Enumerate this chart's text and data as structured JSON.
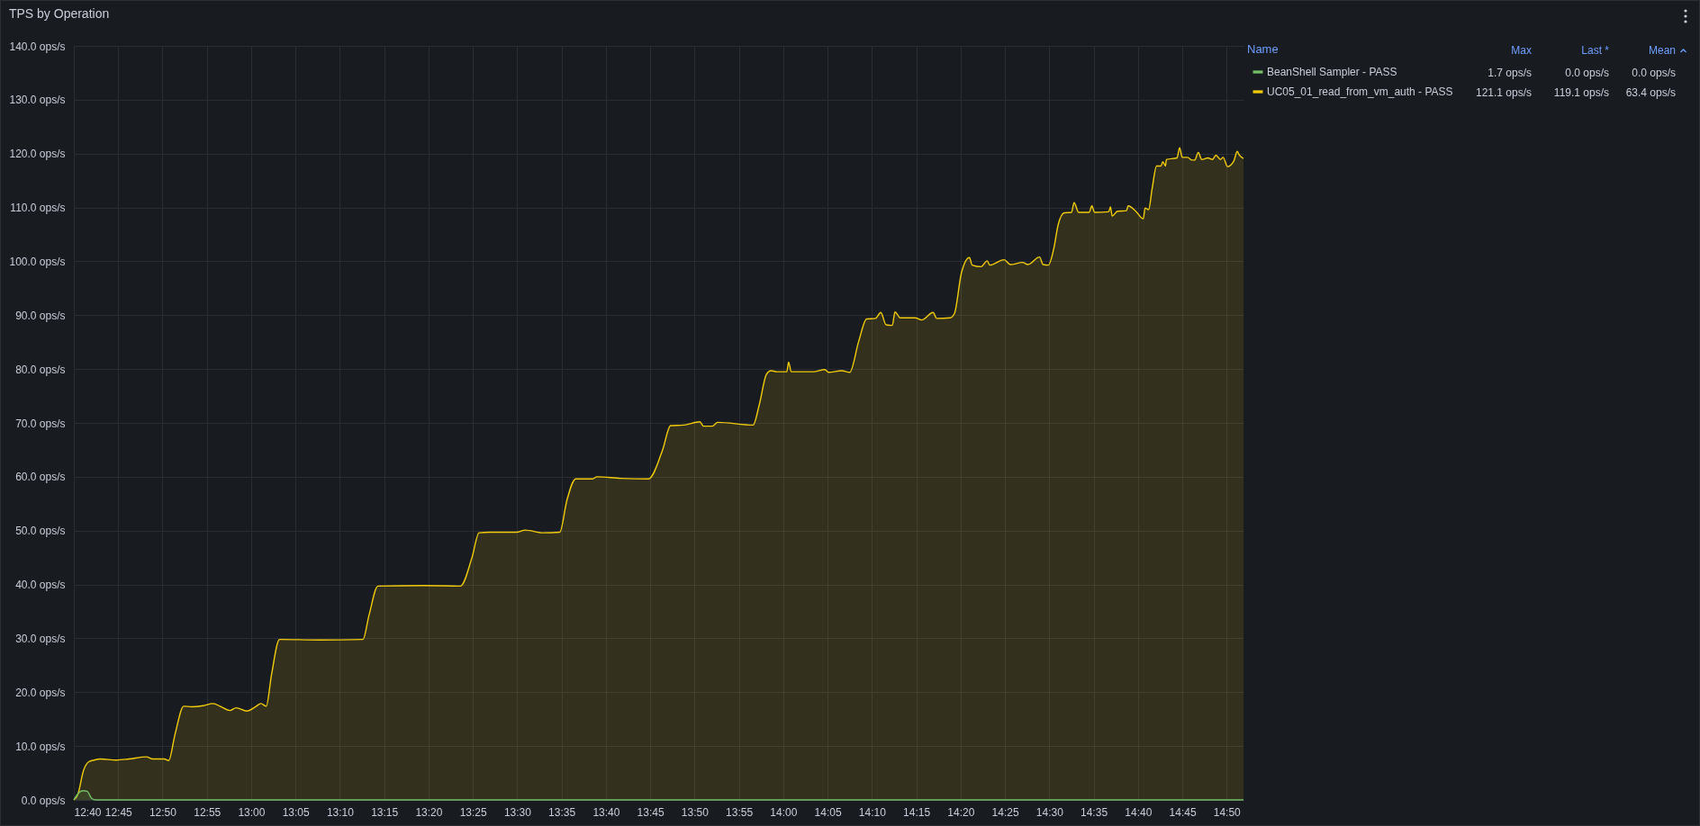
{
  "chart_data": {
    "type": "area",
    "title": "TPS by Operation",
    "legend_title": "Name",
    "grid": true,
    "legend": "top right",
    "annotations": [
      "Max",
      "Last *",
      "Mean",
      "1.7 ops/s",
      "0.0 ops/s",
      "0.0 ops/s",
      "121.1 ops/s",
      "119.1 ops/s",
      "63.4 ops/s"
    ],
    "xlim": [
      12.6667,
      14.865
    ],
    "ylim": [
      0,
      140
    ],
    "xticks": [
      {
        "value": 12.6667,
        "label": "12:40"
      },
      {
        "value": 12.75,
        "label": "12:45"
      },
      {
        "value": 12.8333,
        "label": "12:50"
      },
      {
        "value": 12.9167,
        "label": "12:55"
      },
      {
        "value": 13,
        "label": "13:00"
      },
      {
        "value": 13.0833,
        "label": "13:05"
      },
      {
        "value": 13.1667,
        "label": "13:10"
      },
      {
        "value": 13.25,
        "label": "13:15"
      },
      {
        "value": 13.3333,
        "label": "13:20"
      },
      {
        "value": 13.4167,
        "label": "13:25"
      },
      {
        "value": 13.5,
        "label": "13:30"
      },
      {
        "value": 13.5833,
        "label": "13:35"
      },
      {
        "value": 13.6667,
        "label": "13:40"
      },
      {
        "value": 13.75,
        "label": "13:45"
      },
      {
        "value": 13.8333,
        "label": "13:50"
      },
      {
        "value": 13.9167,
        "label": "13:55"
      },
      {
        "value": 14,
        "label": "14:00"
      },
      {
        "value": 14.0833,
        "label": "14:05"
      },
      {
        "value": 14.1667,
        "label": "14:10"
      },
      {
        "value": 14.25,
        "label": "14:15"
      },
      {
        "value": 14.3333,
        "label": "14:20"
      },
      {
        "value": 14.4167,
        "label": "14:25"
      },
      {
        "value": 14.5,
        "label": "14:30"
      },
      {
        "value": 14.5833,
        "label": "14:35"
      },
      {
        "value": 14.6667,
        "label": "14:40"
      },
      {
        "value": 14.75,
        "label": "14:45"
      },
      {
        "value": 14.8333,
        "label": "14:50"
      }
    ],
    "yticks": [
      {
        "value": 0,
        "label": "0.0 ops/s"
      },
      {
        "value": 10,
        "label": "10.0 ops/s"
      },
      {
        "value": 20,
        "label": "20.0 ops/s"
      },
      {
        "value": 30,
        "label": "30.0 ops/s"
      },
      {
        "value": 40,
        "label": "40.0 ops/s"
      },
      {
        "value": 50,
        "label": "50.0 ops/s"
      },
      {
        "value": 60,
        "label": "60.0 ops/s"
      },
      {
        "value": 70,
        "label": "70.0 ops/s"
      },
      {
        "value": 80,
        "label": "80.0 ops/s"
      },
      {
        "value": 90,
        "label": "90.0 ops/s"
      },
      {
        "value": 100,
        "label": "100.0 ops/s"
      },
      {
        "value": 110,
        "label": "110.0 ops/s"
      },
      {
        "value": 120,
        "label": "120.0 ops/s"
      },
      {
        "value": 130,
        "label": "130.0 ops/s"
      },
      {
        "value": 140,
        "label": "140.0 ops/s"
      }
    ],
    "series": [
      {
        "name": "BeanShell Sampler - PASS",
        "color": "#73bf69",
        "x": [
          12.6667,
          12.675,
          12.6833,
          12.6917,
          12.7,
          12.7083,
          14.865
        ],
        "values": [
          0,
          1.2,
          1.7,
          1.6,
          0.3,
          0,
          0
        ]
      },
      {
        "name": "UC05_01_read_from_vm_auth - PASS",
        "color": "#f2cc0c",
        "x": [
          12.6667,
          12.6742,
          12.685,
          12.695,
          12.705,
          12.7167,
          12.7467,
          12.77,
          12.8033,
          12.815,
          12.8367,
          12.845,
          12.8567,
          12.8733,
          12.8883,
          12.91,
          12.9283,
          12.9433,
          12.96,
          12.9717,
          12.9917,
          13.0083,
          13.0183,
          13.0283,
          13.0383,
          13.0533,
          13.1283,
          13.21,
          13.2217,
          13.2383,
          13.325,
          13.3933,
          13.415,
          13.4283,
          13.4483,
          13.4983,
          13.515,
          13.5483,
          13.58,
          13.5933,
          13.61,
          13.6417,
          13.65,
          13.695,
          13.7467,
          13.7733,
          13.7883,
          13.8133,
          13.8433,
          13.85,
          13.8667,
          13.8767,
          13.9433,
          13.955,
          13.9683,
          13.9767,
          13.9883,
          14.0067,
          14.01,
          14.015,
          14.0567,
          14.0783,
          14.085,
          14.11,
          14.125,
          14.1417,
          14.1567,
          14.1733,
          14.1833,
          14.1933,
          14.205,
          14.21,
          14.22,
          14.2483,
          14.26,
          14.2817,
          14.2883,
          14.3133,
          14.3217,
          14.335,
          14.35,
          14.355,
          14.3717,
          14.3833,
          14.3883,
          14.415,
          14.4267,
          14.45,
          14.46,
          14.4817,
          14.4883,
          14.4983,
          14.5083,
          14.5167,
          14.5283,
          14.5417,
          14.5467,
          14.555,
          14.575,
          14.58,
          14.585,
          14.6117,
          14.615,
          14.6183,
          14.6283,
          14.645,
          14.6483,
          14.6617,
          14.6767,
          14.68,
          14.6867,
          14.6933,
          14.7017,
          14.71,
          14.7133,
          14.7183,
          14.72,
          14.74,
          14.745,
          14.75,
          14.76,
          14.7683,
          14.7733,
          14.78,
          14.7867,
          14.7983,
          14.8067,
          14.8133,
          14.8217,
          14.8267,
          14.835,
          14.8467,
          14.8533,
          14.8567,
          14.865
        ],
        "values": [
          0,
          1.0,
          5.5,
          7.1,
          7.4,
          7.6,
          7.4,
          7.6,
          8.0,
          7.6,
          7.6,
          7.3,
          12.1,
          17.4,
          17.3,
          17.5,
          17.9,
          17.3,
          16.6,
          17.1,
          16.5,
          17.3,
          17.9,
          17.4,
          23.3,
          29.8,
          29.7,
          29.8,
          34.4,
          39.7,
          39.8,
          39.7,
          45.0,
          49.6,
          49.7,
          49.7,
          50.1,
          49.6,
          49.7,
          55.6,
          59.6,
          59.6,
          60.0,
          59.7,
          59.6,
          65.0,
          69.5,
          69.6,
          70.2,
          69.4,
          69.4,
          70.1,
          69.6,
          73.4,
          79.0,
          79.7,
          79.5,
          79.5,
          81.3,
          79.5,
          79.5,
          79.9,
          79.4,
          79.7,
          79.4,
          85.1,
          89.3,
          89.4,
          90.5,
          88.2,
          88.1,
          90.6,
          89.5,
          89.5,
          89.1,
          90.5,
          89.4,
          89.5,
          90.3,
          97.9,
          100.7,
          99.3,
          99.0,
          100.1,
          99.3,
          100.3,
          99.4,
          99.8,
          99.4,
          100.8,
          99.4,
          99.3,
          102.3,
          106.8,
          109.0,
          109.1,
          110.9,
          109.1,
          109.1,
          110.3,
          109.1,
          109.2,
          110.1,
          108.4,
          109.3,
          109.4,
          110.3,
          109.4,
          107.9,
          109.9,
          109.6,
          113.5,
          117.7,
          117.7,
          118.5,
          117.7,
          118.9,
          119.2,
          121.1,
          119.3,
          119.3,
          118.8,
          118.8,
          120.2,
          118.9,
          119.2,
          118.9,
          119.7,
          118.9,
          119.3,
          117.6,
          118.6,
          120.4,
          119.8,
          119.1
        ]
      }
    ]
  }
}
